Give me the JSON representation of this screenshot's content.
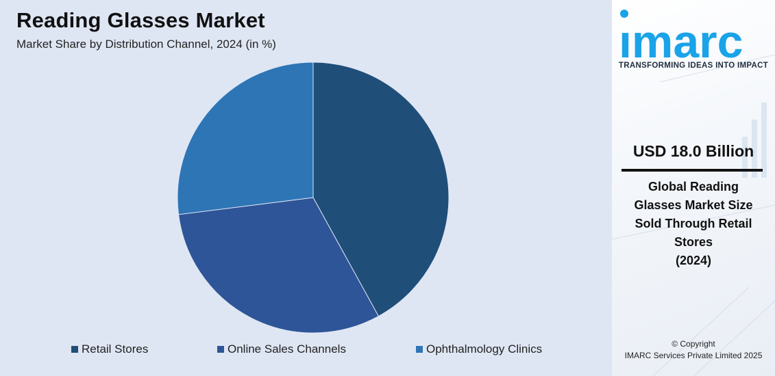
{
  "title": "Reading Glasses Market",
  "subtitle": "Market Share by Distribution Channel, 2024 (in %)",
  "chart_data": {
    "type": "pie",
    "title": "Reading Glasses Market",
    "subtitle": "Market Share by Distribution Channel, 2024 (in %)",
    "categories": [
      "Retail Stores",
      "Online Sales Channels",
      "Ophthalmology Clinics"
    ],
    "values": [
      42,
      31,
      27
    ],
    "colors": [
      "#1f4e79",
      "#2e5597",
      "#2e75b6"
    ],
    "legend_position": "bottom"
  },
  "side_panel": {
    "logo_text": "imarc",
    "tagline": "TRANSFORMING IDEAS INTO IMPACT",
    "value": "USD 18.0 Billion",
    "description_lines": [
      "Global Reading",
      "Glasses Market Size",
      "Sold Through Retail",
      "Stores",
      "(2024)"
    ],
    "copyright_line1": "© Copyright",
    "copyright_line2": "IMARC Services Private Limited 2025",
    "accent_color": "#1aa3e8"
  }
}
